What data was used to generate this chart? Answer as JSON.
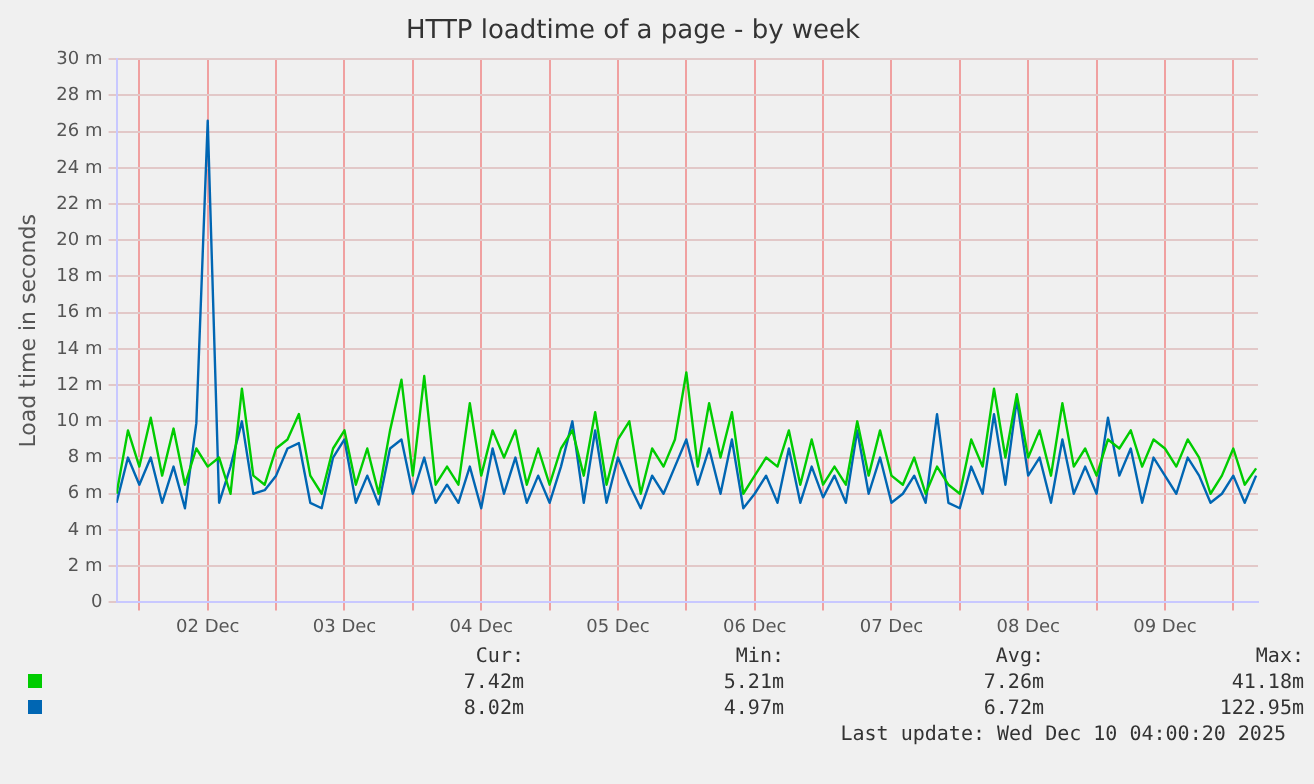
{
  "chart_data": {
    "type": "line",
    "title": "HTTP loadtime of a page - by week",
    "ylabel": "Load time in seconds",
    "x": [
      "2025-12-01T20:00",
      "2025-12-01T22:00",
      "2025-12-02T00:00",
      "2025-12-02T02:00",
      "2025-12-02T04:00",
      "2025-12-02T06:00",
      "2025-12-02T08:00",
      "2025-12-02T10:00",
      "2025-12-02T12:00",
      "2025-12-02T14:00",
      "2025-12-02T16:00",
      "2025-12-02T18:00",
      "2025-12-02T20:00",
      "2025-12-02T22:00",
      "2025-12-03T00:00",
      "2025-12-03T02:00",
      "2025-12-03T04:00",
      "2025-12-03T06:00",
      "2025-12-03T08:00",
      "2025-12-03T10:00",
      "2025-12-03T12:00",
      "2025-12-03T14:00",
      "2025-12-03T16:00",
      "2025-12-03T18:00",
      "2025-12-03T20:00",
      "2025-12-03T22:00",
      "2025-12-04T00:00",
      "2025-12-04T02:00",
      "2025-12-04T04:00",
      "2025-12-04T06:00",
      "2025-12-04T08:00",
      "2025-12-04T10:00",
      "2025-12-04T12:00",
      "2025-12-04T14:00",
      "2025-12-04T16:00",
      "2025-12-04T18:00",
      "2025-12-04T20:00",
      "2025-12-04T22:00",
      "2025-12-05T00:00",
      "2025-12-05T02:00",
      "2025-12-05T04:00",
      "2025-12-05T06:00",
      "2025-12-05T08:00",
      "2025-12-05T10:00",
      "2025-12-05T12:00",
      "2025-12-05T14:00",
      "2025-12-05T16:00",
      "2025-12-05T18:00",
      "2025-12-05T20:00",
      "2025-12-05T22:00",
      "2025-12-06T00:00",
      "2025-12-06T02:00",
      "2025-12-06T04:00",
      "2025-12-06T06:00",
      "2025-12-06T08:00",
      "2025-12-06T10:00",
      "2025-12-06T12:00",
      "2025-12-06T14:00",
      "2025-12-06T16:00",
      "2025-12-06T18:00",
      "2025-12-06T20:00",
      "2025-12-06T22:00",
      "2025-12-07T00:00",
      "2025-12-07T02:00",
      "2025-12-07T04:00",
      "2025-12-07T06:00",
      "2025-12-07T08:00",
      "2025-12-07T10:00",
      "2025-12-07T12:00",
      "2025-12-07T14:00",
      "2025-12-07T16:00",
      "2025-12-07T18:00",
      "2025-12-07T20:00",
      "2025-12-07T22:00",
      "2025-12-08T00:00",
      "2025-12-08T02:00",
      "2025-12-08T04:00",
      "2025-12-08T06:00",
      "2025-12-08T08:00",
      "2025-12-08T10:00",
      "2025-12-08T12:00",
      "2025-12-08T14:00",
      "2025-12-08T16:00",
      "2025-12-08T18:00",
      "2025-12-08T20:00",
      "2025-12-08T22:00",
      "2025-12-09T00:00",
      "2025-12-09T02:00",
      "2025-12-09T04:00",
      "2025-12-09T06:00",
      "2025-12-09T08:00",
      "2025-12-09T10:00",
      "2025-12-09T12:00",
      "2025-12-09T14:00",
      "2025-12-09T16:00",
      "2025-12-09T18:00",
      "2025-12-09T20:00",
      "2025-12-09T22:00",
      "2025-12-10T00:00",
      "2025-12-10T02:00",
      "2025-12-10T04:00"
    ],
    "series": [
      {
        "color": "#00cc00",
        "values": [
          6.0,
          9.5,
          7.5,
          10.2,
          7.0,
          9.6,
          6.5,
          8.5,
          7.5,
          8.0,
          6.0,
          11.8,
          7.0,
          6.5,
          8.5,
          9.0,
          10.4,
          7.0,
          6.0,
          8.5,
          9.5,
          6.5,
          8.5,
          6.0,
          9.5,
          12.3,
          7.0,
          12.5,
          6.5,
          7.5,
          6.5,
          11.0,
          7.0,
          9.5,
          8.0,
          9.5,
          6.5,
          8.5,
          6.5,
          8.5,
          9.5,
          7.0,
          10.5,
          6.5,
          9.0,
          10.0,
          6.0,
          8.5,
          7.5,
          9.0,
          12.7,
          7.5,
          11.0,
          8.0,
          10.5,
          6.0,
          7.0,
          8.0,
          7.5,
          9.5,
          6.5,
          9.0,
          6.5,
          7.5,
          6.5,
          10.0,
          7.0,
          9.5,
          7.0,
          6.5,
          8.0,
          6.0,
          7.5,
          6.5,
          6.0,
          9.0,
          7.5,
          11.8,
          8.0,
          11.5,
          8.0,
          9.5,
          7.0,
          11.0,
          7.5,
          8.5,
          7.0,
          9.0,
          8.5,
          9.5,
          7.5,
          9.0,
          8.5,
          7.5,
          9.0,
          8.0,
          6.0,
          7.0,
          8.5,
          6.5,
          7.4
        ]
      },
      {
        "color": "#0066b3",
        "values": [
          5.5,
          8.0,
          6.5,
          8.0,
          5.5,
          7.5,
          5.2,
          9.9,
          26.6,
          5.5,
          7.5,
          10.0,
          6.0,
          6.2,
          7.0,
          8.5,
          8.8,
          5.5,
          5.2,
          8.0,
          9.0,
          5.5,
          7.0,
          5.4,
          8.5,
          9.0,
          6.0,
          8.0,
          5.5,
          6.5,
          5.5,
          7.5,
          5.2,
          8.5,
          6.0,
          8.0,
          5.5,
          7.0,
          5.5,
          7.5,
          10.0,
          5.5,
          9.5,
          5.5,
          8.0,
          6.5,
          5.2,
          7.0,
          6.0,
          7.5,
          9.0,
          6.5,
          8.5,
          6.0,
          9.0,
          5.2,
          6.0,
          7.0,
          5.5,
          8.5,
          5.5,
          7.5,
          5.8,
          7.0,
          5.5,
          9.5,
          6.0,
          8.0,
          5.5,
          6.0,
          7.0,
          5.5,
          10.4,
          5.5,
          5.2,
          7.5,
          6.0,
          10.4,
          6.5,
          11.2,
          7.0,
          8.0,
          5.5,
          9.0,
          6.0,
          7.5,
          6.0,
          10.2,
          7.0,
          8.5,
          5.5,
          8.0,
          7.0,
          6.0,
          8.0,
          7.0,
          5.5,
          6.0,
          7.0,
          5.5,
          7.0
        ]
      }
    ],
    "xlim": [
      "2025-12-01T20:00",
      "2025-12-10T04:20"
    ],
    "xticks": [
      {
        "value": "2025-12-02T00:00",
        "label": null
      },
      {
        "value": "2025-12-02T12:00",
        "label": "02 Dec"
      },
      {
        "value": "2025-12-03T00:00",
        "label": null
      },
      {
        "value": "2025-12-03T12:00",
        "label": "03 Dec"
      },
      {
        "value": "2025-12-04T00:00",
        "label": null
      },
      {
        "value": "2025-12-04T12:00",
        "label": "04 Dec"
      },
      {
        "value": "2025-12-05T00:00",
        "label": null
      },
      {
        "value": "2025-12-05T12:00",
        "label": "05 Dec"
      },
      {
        "value": "2025-12-06T00:00",
        "label": null
      },
      {
        "value": "2025-12-06T12:00",
        "label": "06 Dec"
      },
      {
        "value": "2025-12-07T00:00",
        "label": null
      },
      {
        "value": "2025-12-07T12:00",
        "label": "07 Dec"
      },
      {
        "value": "2025-12-08T00:00",
        "label": null
      },
      {
        "value": "2025-12-08T12:00",
        "label": "08 Dec"
      },
      {
        "value": "2025-12-09T00:00",
        "label": null
      },
      {
        "value": "2025-12-09T12:00",
        "label": "09 Dec"
      },
      {
        "value": "2025-12-10T00:00",
        "label": null
      }
    ],
    "ylim": [
      0,
      30
    ],
    "yticks": [
      0,
      {
        "value": 2,
        "label": "2 m"
      },
      {
        "value": 4,
        "label": "4 m"
      },
      {
        "value": 6,
        "label": "6 m"
      },
      {
        "value": 8,
        "label": "8 m"
      },
      {
        "value": 10,
        "label": "10 m"
      },
      {
        "value": 12,
        "label": "12 m"
      },
      {
        "value": 14,
        "label": "14 m"
      },
      {
        "value": 16,
        "label": "16 m"
      },
      {
        "value": 18,
        "label": "18 m"
      },
      {
        "value": 20,
        "label": "20 m"
      },
      {
        "value": 22,
        "label": "22 m"
      },
      {
        "value": 24,
        "label": "24 m"
      },
      {
        "value": 26,
        "label": "26 m"
      },
      {
        "value": 28,
        "label": "28 m"
      },
      {
        "value": 30,
        "label": "30 m"
      }
    ],
    "grid": true,
    "marker": "none",
    "line_style": "solid",
    "annotations": [
      "Cur:",
      "Min:",
      "Avg:",
      "Max:",
      "7.42m",
      "5.21m",
      "7.26m",
      "41.18m",
      "8.02m",
      "4.97m",
      "6.72m",
      "122.95m",
      "Last update: Wed Dec 10 04:00:20 2025"
    ]
  }
}
